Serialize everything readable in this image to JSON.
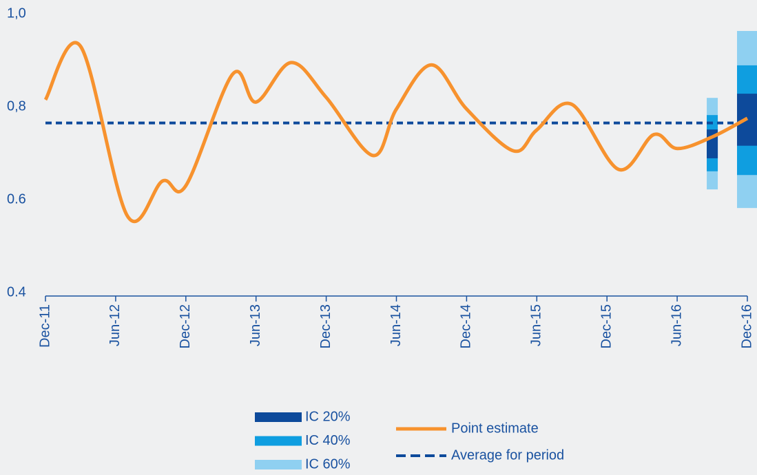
{
  "chart_data": {
    "type": "line",
    "x": [
      "Dec-11",
      "Mar-12",
      "Jul-12",
      "Oct-12",
      "Dec-12",
      "Apr-13",
      "Jun-13",
      "Sep-13",
      "Dec-13",
      "Apr-14",
      "Jun-14",
      "Sep-14",
      "Dec-14",
      "Apr-15",
      "Jun-15",
      "Sep-15",
      "Jan-16",
      "Apr-16",
      "Jun-16",
      "Sep-16",
      "Dec-16"
    ],
    "series": [
      {
        "name": "Point estimate",
        "color": "#f7922e",
        "values": [
          0.815,
          0.93,
          0.565,
          0.64,
          0.63,
          0.87,
          0.81,
          0.895,
          0.82,
          0.695,
          0.795,
          0.89,
          0.795,
          0.705,
          0.75,
          0.805,
          0.665,
          0.74,
          0.71,
          0.735,
          0.775
        ]
      }
    ],
    "average": {
      "name": "Average for period",
      "color": "#0d4a9b",
      "value": 0.765
    },
    "band_x": [
      "Sep-16",
      "Dec-16"
    ],
    "bands": [
      {
        "name": "IC 60%",
        "color": "#8fd0f1",
        "low": [
          0.622,
          0.582
        ],
        "high": [
          0.819,
          0.963
        ]
      },
      {
        "name": "IC 40%",
        "color": "#0f9ee0",
        "low": [
          0.661,
          0.653
        ],
        "high": [
          0.782,
          0.889
        ]
      },
      {
        "name": "IC 20%",
        "color": "#0d4a9b",
        "low": [
          0.689,
          0.716
        ],
        "high": [
          0.751,
          0.828
        ]
      }
    ],
    "legend_order": [
      2,
      1,
      0
    ],
    "xlim": [
      "Dec-11",
      "Dec-16"
    ],
    "xticks": [
      "Dec-11",
      "Jun-12",
      "Dec-12",
      "Jun-13",
      "Dec-13",
      "Jun-14",
      "Dec-14",
      "Jun-15",
      "Dec-15",
      "Jun-16",
      "Dec-16"
    ],
    "ylim": [
      0.4,
      1.0
    ],
    "yticks": [
      0.4,
      0.6,
      {
        "value": 0.8,
        "label": "0,8"
      },
      {
        "value": 1.0,
        "label": "1,0"
      }
    ]
  }
}
